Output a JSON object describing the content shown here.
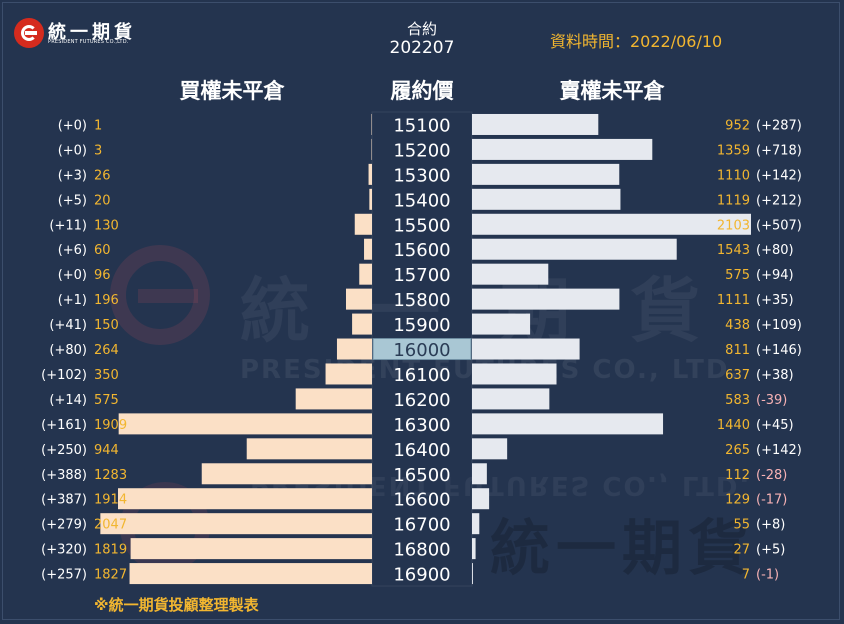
{
  "logo": {
    "name": "統一期貨",
    "subtitle": "PRESIDENT FUTURES CO.,LTD."
  },
  "header": {
    "contract_label": "合約",
    "contract_value": "202207",
    "data_time": "資料時間：2022/06/10",
    "call_header": "買權未平倉",
    "strike_header": "履約價",
    "put_header": "賣權未平倉"
  },
  "watermark": {
    "text": "統一期貨",
    "subtitle": "PRESIDENT FUTURES CO., LTD."
  },
  "footer": "※統一期貨投顧整理製表",
  "colors": {
    "background": "#24344f",
    "call_bar": "#fbe0c6",
    "put_bar": "#e6e9ef",
    "value_text": "#f2b630",
    "highlight_value": "#f2b630",
    "negative_change": "#f7b2b5",
    "positive_change": "#ffffff",
    "atm_fill": "#a9c7d4",
    "strike_box": "#ffffff"
  },
  "chart_data": {
    "type": "bar",
    "title": "",
    "atm_strike": "16000",
    "strikes": [
      "15100",
      "15200",
      "15300",
      "15400",
      "15500",
      "15600",
      "15700",
      "15800",
      "15900",
      "16000",
      "16100",
      "16200",
      "16300",
      "16400",
      "16500",
      "16600",
      "16700",
      "16800",
      "16900"
    ],
    "series": [
      {
        "name": "買權未平倉",
        "values": [
          1,
          3,
          26,
          20,
          130,
          60,
          96,
          196,
          150,
          264,
          350,
          575,
          1909,
          944,
          1283,
          1914,
          2047,
          1819,
          1827
        ],
        "changes": [
          "(+0)",
          "(+0)",
          "(+3)",
          "(+5)",
          "(+11)",
          "(+6)",
          "(+0)",
          "(+1)",
          "(+41)",
          "(+80)",
          "(+102)",
          "(+14)",
          "(+161)",
          "(+250)",
          "(+388)",
          "(+387)",
          "(+279)",
          "(+320)",
          "(+257)"
        ]
      },
      {
        "name": "賣權未平倉",
        "values": [
          952,
          1359,
          1110,
          1119,
          2103,
          1543,
          575,
          1111,
          438,
          811,
          637,
          583,
          1440,
          265,
          112,
          129,
          55,
          27,
          7
        ],
        "changes": [
          "(+287)",
          "(+718)",
          "(+142)",
          "(+212)",
          "(+507)",
          "(+80)",
          "(+94)",
          "(+35)",
          "(+109)",
          "(+146)",
          "(+38)",
          "(-39)",
          "(+45)",
          "(+142)",
          "(-28)",
          "(-17)",
          "(+8)",
          "(+5)",
          "(-1)"
        ]
      }
    ],
    "value_max": 2103
  }
}
